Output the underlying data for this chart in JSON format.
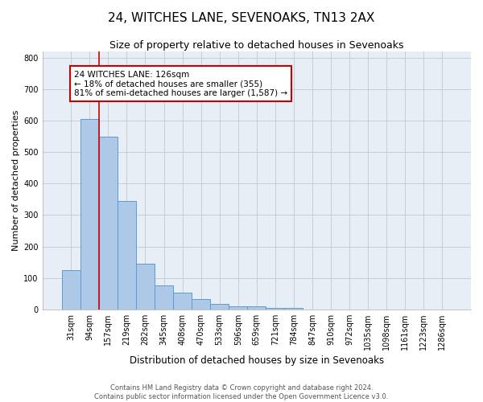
{
  "title": "24, WITCHES LANE, SEVENOAKS, TN13 2AX",
  "subtitle": "Size of property relative to detached houses in Sevenoaks",
  "xlabel": "Distribution of detached houses by size in Sevenoaks",
  "ylabel": "Number of detached properties",
  "bar_labels": [
    "31sqm",
    "94sqm",
    "157sqm",
    "219sqm",
    "282sqm",
    "345sqm",
    "408sqm",
    "470sqm",
    "533sqm",
    "596sqm",
    "659sqm",
    "721sqm",
    "784sqm",
    "847sqm",
    "910sqm",
    "972sqm",
    "1035sqm",
    "1098sqm",
    "1161sqm",
    "1223sqm",
    "1286sqm"
  ],
  "bar_values": [
    125,
    605,
    550,
    345,
    145,
    75,
    53,
    32,
    17,
    10,
    10,
    5,
    5,
    0,
    0,
    0,
    0,
    0,
    0,
    0,
    0
  ],
  "bar_color": "#aec8e8",
  "bar_edge_color": "#5b9bd5",
  "property_line_x": 1.5,
  "annotation_text_line1": "24 WITCHES LANE: 126sqm",
  "annotation_text_line2": "← 18% of detached houses are smaller (355)",
  "annotation_text_line3": "81% of semi-detached houses are larger (1,587) →",
  "annotation_box_color": "#ffffff",
  "annotation_border_color": "#cc0000",
  "ylim": [
    0,
    820
  ],
  "yticks": [
    0,
    100,
    200,
    300,
    400,
    500,
    600,
    700,
    800
  ],
  "plot_bg_color": "#e8eef5",
  "grid_color": "#c5cdd8",
  "footer_line1": "Contains HM Land Registry data © Crown copyright and database right 2024.",
  "footer_line2": "Contains public sector information licensed under the Open Government Licence v3.0.",
  "title_fontsize": 11,
  "subtitle_fontsize": 9,
  "xlabel_fontsize": 8.5,
  "ylabel_fontsize": 8,
  "tick_fontsize": 7,
  "annotation_fontsize": 7.5,
  "footer_fontsize": 6
}
